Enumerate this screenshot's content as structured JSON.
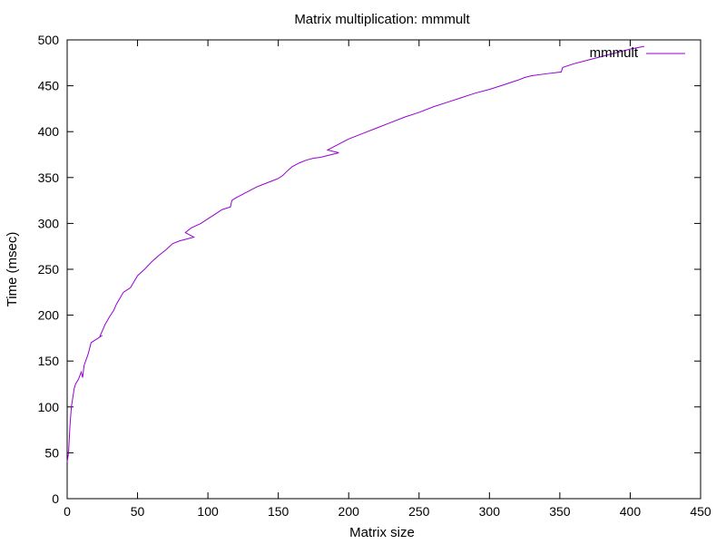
{
  "chart_data": {
    "type": "line",
    "title": "Matrix multiplication: mmmult",
    "xlabel": "Matrix size",
    "ylabel": "Time (msec)",
    "xlim": [
      0,
      450
    ],
    "ylim": [
      0,
      500
    ],
    "xticks": [
      0,
      50,
      100,
      150,
      200,
      250,
      300,
      350,
      400,
      450
    ],
    "yticks": [
      0,
      50,
      100,
      150,
      200,
      250,
      300,
      350,
      400,
      450,
      500
    ],
    "grid": false,
    "legend_position": "top-right",
    "series": [
      {
        "name": "mmmult",
        "color": "#9400d3",
        "x": [
          0,
          1,
          2,
          3,
          4,
          5,
          6,
          8,
          10,
          11,
          12,
          15,
          17,
          20,
          22,
          25,
          23,
          27,
          30,
          33,
          35,
          40,
          45,
          50,
          55,
          60,
          65,
          70,
          75,
          80,
          85,
          90,
          84,
          88,
          95,
          100,
          105,
          110,
          116,
          117,
          120,
          125,
          130,
          135,
          140,
          145,
          150,
          153,
          157,
          160,
          165,
          170,
          175,
          180,
          193,
          185,
          195,
          200,
          210,
          220,
          230,
          240,
          250,
          260,
          270,
          280,
          290,
          300,
          310,
          320,
          325,
          330,
          340,
          351,
          352,
          360,
          370,
          380,
          390,
          400,
          410
        ],
        "y": [
          40,
          50,
          80,
          100,
          110,
          120,
          125,
          130,
          138,
          132,
          145,
          158,
          170,
          173,
          175,
          178,
          176,
          190,
          198,
          205,
          212,
          225,
          230,
          243,
          250,
          258,
          265,
          271,
          278,
          281,
          283,
          285,
          290,
          295,
          300,
          305,
          310,
          315,
          318,
          325,
          328,
          332,
          336,
          340,
          343,
          346,
          349,
          352,
          358,
          362,
          366,
          369,
          371,
          372,
          377,
          380,
          388,
          392,
          398,
          404,
          410,
          416,
          421,
          427,
          432,
          437,
          442,
          446,
          451,
          456,
          459,
          461,
          463,
          465,
          470,
          474,
          478,
          482,
          486,
          490,
          493
        ]
      }
    ]
  }
}
